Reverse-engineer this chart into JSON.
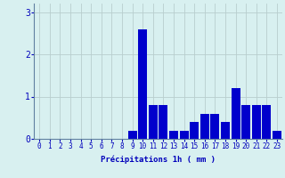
{
  "categories": [
    0,
    1,
    2,
    3,
    4,
    5,
    6,
    7,
    8,
    9,
    10,
    11,
    12,
    13,
    14,
    15,
    16,
    17,
    18,
    19,
    20,
    21,
    22,
    23
  ],
  "values": [
    0,
    0,
    0,
    0,
    0,
    0,
    0,
    0,
    0,
    0.2,
    2.6,
    0.8,
    0.8,
    0.2,
    0.2,
    0.4,
    0.6,
    0.6,
    0.4,
    1.2,
    0.8,
    0.8,
    0.8,
    0.2
  ],
  "bar_color": "#0000cc",
  "background_color": "#d8f0f0",
  "grid_color": "#b8cece",
  "xlabel": "Précipitations 1h ( mm )",
  "xlabel_color": "#0000bb",
  "tick_color": "#0000bb",
  "axis_color": "#6080a0",
  "ylim": [
    0,
    3.2
  ],
  "yticks": [
    0,
    1,
    2,
    3
  ],
  "xlim": [
    -0.5,
    23.5
  ],
  "tick_fontsize": 5.5,
  "xlabel_fontsize": 6.5,
  "ytick_fontsize": 7
}
